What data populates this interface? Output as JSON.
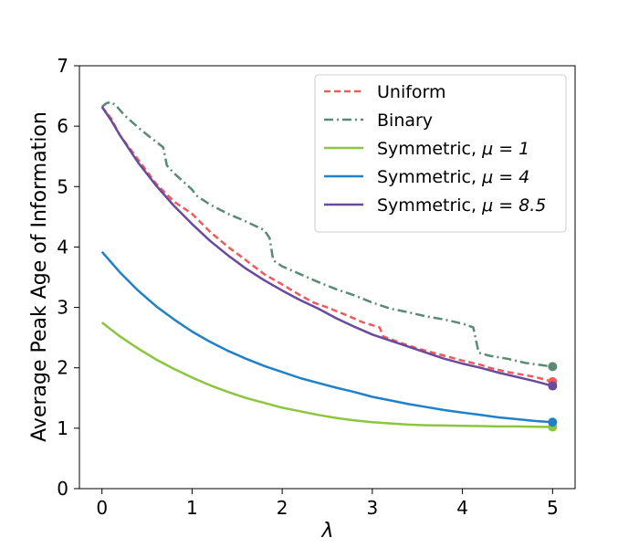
{
  "chart_data": {
    "type": "line",
    "xlabel": "λ",
    "ylabel": "Average Peak Age of Information",
    "xlim": [
      -0.25,
      5.25
    ],
    "ylim": [
      0,
      7
    ],
    "xticks": [
      0,
      1,
      2,
      3,
      4,
      5
    ],
    "yticks": [
      0,
      1,
      2,
      3,
      4,
      5,
      6,
      7
    ],
    "grid": false,
    "legend_position": "top-right",
    "series": [
      {
        "name": "Uniform",
        "color": "#f05a5a",
        "dash": "dashed",
        "endpoint_marker": true,
        "x": [
          0,
          0.1,
          0.2,
          0.4,
          0.6,
          0.8,
          1.0,
          1.2,
          1.4,
          1.6,
          1.8,
          2.0,
          2.2,
          2.35,
          2.5,
          2.7,
          2.9,
          3.08,
          3.12,
          3.3,
          3.5,
          3.8,
          4.0,
          4.2,
          4.3,
          4.5,
          4.8,
          5.0
        ],
        "y": [
          6.32,
          6.13,
          5.85,
          5.45,
          5.05,
          4.75,
          4.55,
          4.25,
          4.0,
          3.78,
          3.55,
          3.38,
          3.2,
          3.08,
          3.0,
          2.88,
          2.75,
          2.67,
          2.52,
          2.42,
          2.32,
          2.2,
          2.12,
          2.05,
          2.0,
          1.93,
          1.85,
          1.77
        ]
      },
      {
        "name": "Binary",
        "color": "#5a8a74",
        "dash": "dashdot",
        "endpoint_marker": true,
        "x": [
          0,
          0.05,
          0.1,
          0.15,
          0.25,
          0.4,
          0.55,
          0.68,
          0.72,
          0.8,
          1.0,
          1.05,
          1.2,
          1.4,
          1.6,
          1.8,
          1.86,
          1.9,
          2.0,
          2.2,
          2.4,
          2.6,
          2.8,
          3.0,
          3.2,
          3.4,
          3.6,
          3.8,
          4.0,
          4.12,
          4.18,
          4.3,
          4.5,
          4.7,
          5.0
        ],
        "y": [
          6.32,
          6.38,
          6.4,
          6.35,
          6.18,
          5.98,
          5.8,
          5.65,
          5.35,
          5.22,
          4.95,
          4.85,
          4.7,
          4.55,
          4.42,
          4.28,
          4.15,
          3.78,
          3.68,
          3.55,
          3.42,
          3.3,
          3.2,
          3.08,
          2.98,
          2.92,
          2.85,
          2.8,
          2.73,
          2.67,
          2.25,
          2.2,
          2.15,
          2.08,
          2.02
        ]
      },
      {
        "name": "Symmetric, μ = 1",
        "color": "#8cc63f",
        "dash": "solid",
        "endpoint_marker": true,
        "x": [
          0,
          0.2,
          0.4,
          0.6,
          0.8,
          1.0,
          1.2,
          1.4,
          1.6,
          1.8,
          2.0,
          2.2,
          2.4,
          2.6,
          2.8,
          3.0,
          3.2,
          3.4,
          3.6,
          3.8,
          4.0,
          4.2,
          4.4,
          4.6,
          4.8,
          5.0
        ],
        "y": [
          2.75,
          2.52,
          2.32,
          2.14,
          1.98,
          1.84,
          1.71,
          1.6,
          1.5,
          1.42,
          1.34,
          1.28,
          1.22,
          1.17,
          1.13,
          1.1,
          1.08,
          1.06,
          1.05,
          1.045,
          1.04,
          1.035,
          1.03,
          1.03,
          1.025,
          1.02
        ]
      },
      {
        "name": "Symmetric, μ = 4",
        "color": "#2080c8",
        "dash": "solid",
        "endpoint_marker": true,
        "x": [
          0,
          0.2,
          0.4,
          0.6,
          0.8,
          1.0,
          1.2,
          1.4,
          1.6,
          1.8,
          2.0,
          2.2,
          2.4,
          2.6,
          2.8,
          3.0,
          3.2,
          3.4,
          3.6,
          3.8,
          4.0,
          4.2,
          4.4,
          4.6,
          4.8,
          5.0
        ],
        "y": [
          3.92,
          3.58,
          3.28,
          3.02,
          2.8,
          2.6,
          2.43,
          2.28,
          2.15,
          2.03,
          1.93,
          1.83,
          1.75,
          1.67,
          1.6,
          1.52,
          1.46,
          1.4,
          1.35,
          1.3,
          1.26,
          1.22,
          1.18,
          1.15,
          1.12,
          1.1
        ]
      },
      {
        "name": "Symmetric, μ = 8.5",
        "color": "#6a4a9a",
        "dash": "solid",
        "endpoint_marker": true,
        "x": [
          0,
          0.1,
          0.2,
          0.4,
          0.6,
          0.8,
          1.0,
          1.2,
          1.4,
          1.6,
          1.8,
          2.0,
          2.2,
          2.4,
          2.6,
          2.8,
          3.0,
          3.2,
          3.4,
          3.6,
          3.8,
          4.0,
          4.2,
          4.4,
          4.6,
          4.8,
          5.0
        ],
        "y": [
          6.32,
          6.1,
          5.85,
          5.4,
          5.02,
          4.68,
          4.38,
          4.1,
          3.86,
          3.64,
          3.45,
          3.28,
          3.12,
          2.98,
          2.82,
          2.68,
          2.55,
          2.45,
          2.35,
          2.25,
          2.15,
          2.07,
          2.0,
          1.92,
          1.85,
          1.78,
          1.7
        ]
      }
    ]
  },
  "legend_labels": [
    {
      "prefix": "Uniform",
      "mu": ""
    },
    {
      "prefix": "Binary",
      "mu": ""
    },
    {
      "prefix": "Symmetric, ",
      "mu": "μ = 1"
    },
    {
      "prefix": "Symmetric, ",
      "mu": "μ = 4"
    },
    {
      "prefix": "Symmetric, ",
      "mu": "μ = 8.5"
    }
  ]
}
